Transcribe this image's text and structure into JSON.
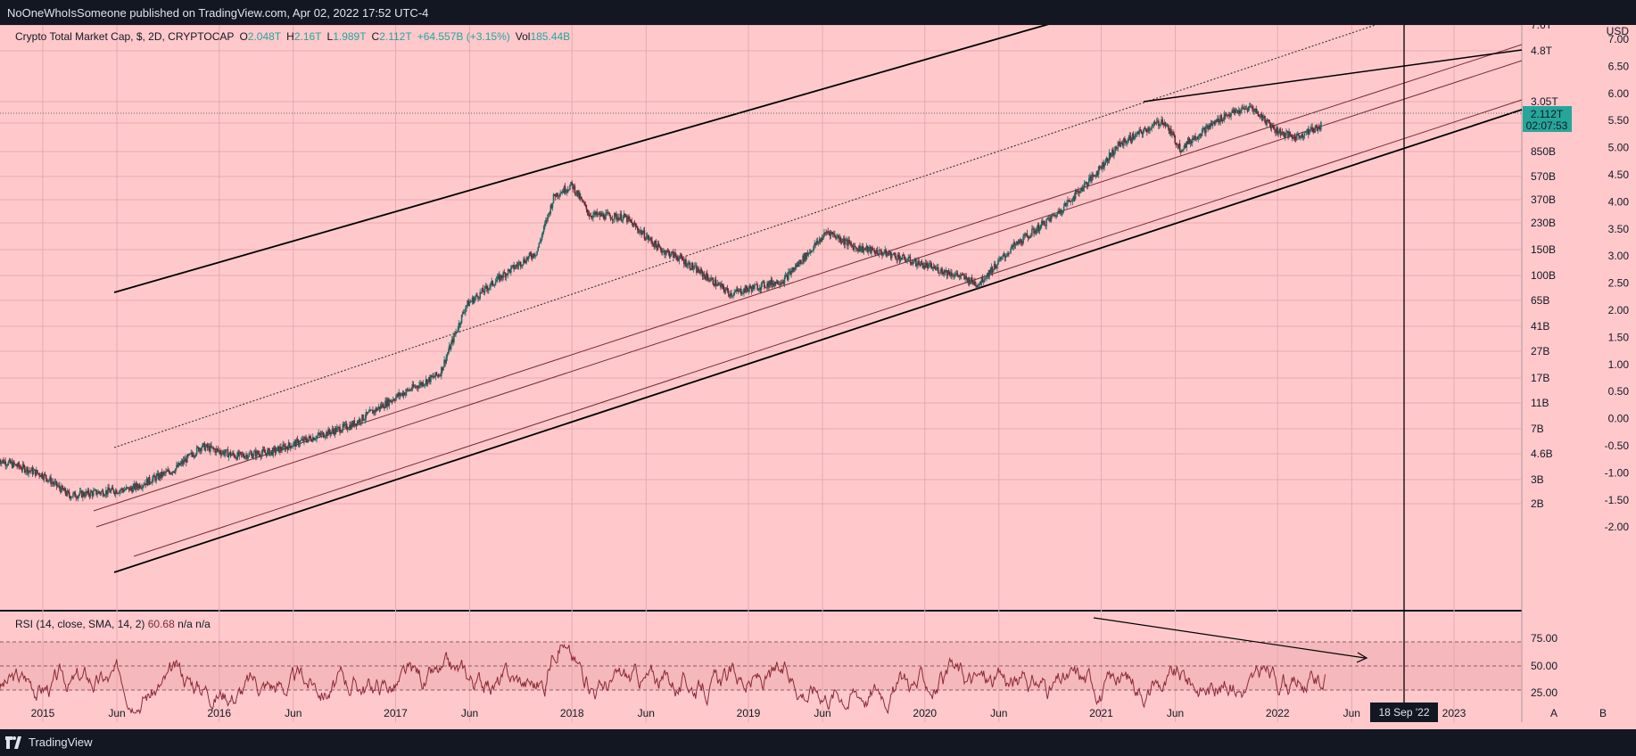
{
  "header": {
    "publisher_line": "NoOneWhoIsSomeone published on TradingView.com, Apr 02, 2022 17:52 UTC-4"
  },
  "footer": {
    "brand": "TradingView",
    "scale_a": "A",
    "scale_b": "B"
  },
  "legend": {
    "title": "Crypto Total Market Cap, $, 2D, CRYPTOCAP",
    "o_label": "O",
    "o": "2.048T",
    "h_label": "H",
    "h": "2.16T",
    "l_label": "L",
    "l": "1.989T",
    "c_label": "C",
    "c": "2.112T",
    "change": "+64.557B (+3.15%)",
    "vol_label": "Vol",
    "vol": "185.44B"
  },
  "price_tag": {
    "value": "2.112T",
    "countdown": "02:07:53"
  },
  "rsi_legend": {
    "title": "RSI (14, close, SMA, 14, 2)",
    "value": "60.68",
    "na1": "n/a",
    "na2": "n/a"
  },
  "crosshair_label": "18 Sep '22",
  "colors": {
    "background": "#ffc9cc",
    "candle_up": "#1f6b63",
    "candle_down": "#6e2530",
    "channel": "#7a2a35",
    "trend": "#000000",
    "rsi_line": "#8b2a35",
    "price_tag": "#26a69a"
  },
  "chart_data": [
    {
      "type": "line",
      "name_shown": "Crypto Total Market Cap",
      "scale": "log",
      "x_ticks": [
        "2015",
        "Jun",
        "2016",
        "Jun",
        "2017",
        "Jun",
        "2018",
        "Jun",
        "2019",
        "Jun",
        "2020",
        "Jun",
        "2021",
        "Jun",
        "2022",
        "Jun",
        "2023"
      ],
      "y_ticks_left_axis": [
        "7.6T",
        "4.8T",
        "3.05T",
        "1.35T",
        "850B",
        "570B",
        "370B",
        "230B",
        "150B",
        "100B",
        "65B",
        "41B",
        "27B",
        "17B",
        "11B",
        "7B",
        "4.6B",
        "3B",
        "2B"
      ],
      "y_ticks_right_axis": [
        "USD",
        "7.00",
        "6.50",
        "6.00",
        "5.50",
        "5.00",
        "4.50",
        "4.00",
        "3.50",
        "3.00",
        "2.50",
        "2.00",
        "1.50",
        "1.00",
        "0.50",
        "0.00",
        "-0.50",
        "-1.00",
        "-1.50",
        "-2.00"
      ],
      "x": [
        2014.75,
        2015.0,
        2015.15,
        2015.5,
        2015.75,
        2015.9,
        2016.1,
        2016.3,
        2016.5,
        2016.75,
        2017.0,
        2017.25,
        2017.4,
        2017.6,
        2017.8,
        2017.9,
        2018.0,
        2018.1,
        2018.3,
        2018.5,
        2018.6,
        2018.9,
        2019.0,
        2019.2,
        2019.45,
        2019.6,
        2019.8,
        2019.95,
        2020.2,
        2020.3,
        2020.5,
        2020.75,
        2020.95,
        2021.1,
        2021.35,
        2021.45,
        2021.55,
        2021.7,
        2021.85,
        2022.0,
        2022.1,
        2022.25
      ],
      "y_billions": [
        6,
        4.6,
        3.2,
        3.6,
        5.1,
        7.6,
        6.4,
        6.9,
        8.6,
        11,
        18,
        27,
        90,
        150,
        230,
        620,
        740,
        440,
        420,
        240,
        210,
        110,
        120,
        140,
        330,
        250,
        220,
        190,
        150,
        130,
        250,
        450,
        850,
        1500,
        2300,
        1400,
        1800,
        2500,
        2900,
        1900,
        1700,
        2112
      ],
      "channel_lines": [
        "upper solid",
        "upper dotted",
        "middle band x3 (thin)",
        "lower solid"
      ],
      "top_trendline": "2021-04 high to 2023 right edge",
      "crosshair_x": "18 Sep '22"
    },
    {
      "type": "line",
      "name_shown": "RSI (14, close, SMA, 14, 2)",
      "y_ticks": [
        "75.00",
        "50.00",
        "25.00"
      ],
      "bands": [
        70,
        50,
        30
      ],
      "last_value": 60.68,
      "trendline": "descending from 2021 high toward Jun 2022"
    }
  ]
}
